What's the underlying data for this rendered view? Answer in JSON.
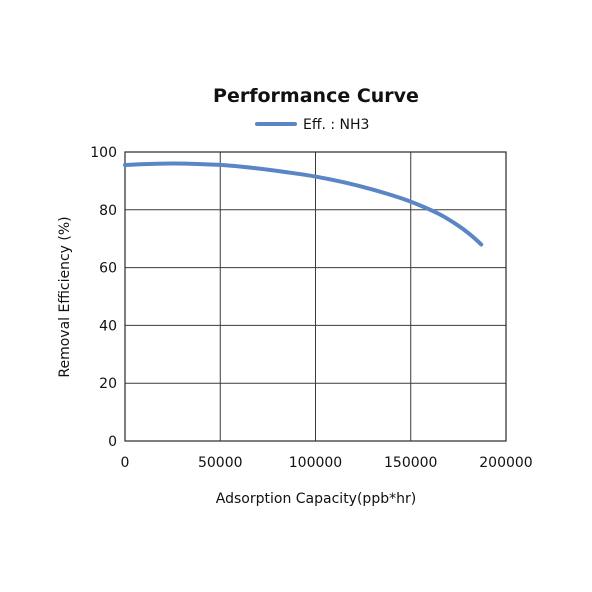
{
  "chart_data": {
    "type": "line",
    "title": "Performance Curve",
    "xlabel": "Adsorption Capacity(ppb*hr)",
    "ylabel": "Removal Efficiency (%)",
    "xlim": [
      0,
      200000
    ],
    "ylim": [
      0,
      100
    ],
    "x_ticks": [
      0,
      50000,
      100000,
      150000,
      200000
    ],
    "x_tick_labels": [
      "0",
      "50000",
      "100000",
      "150000",
      "200000"
    ],
    "y_ticks": [
      0,
      20,
      40,
      60,
      80,
      100
    ],
    "y_tick_labels": [
      "0",
      "20",
      "40",
      "60",
      "80",
      "100"
    ],
    "grid": true,
    "legend_position": "top-center",
    "series": [
      {
        "name": "Eff. : NH3",
        "color": "#5b86c5",
        "x": [
          0,
          10000,
          25000,
          40000,
          55000,
          70000,
          85000,
          100000,
          115000,
          130000,
          145000,
          155000,
          165000,
          175000,
          182000,
          187000
        ],
        "y": [
          95.5,
          95.8,
          96.0,
          95.8,
          95.3,
          94.3,
          93.0,
          91.5,
          89.5,
          87.0,
          84.0,
          81.5,
          78.5,
          74.5,
          71.0,
          68.0
        ]
      }
    ]
  }
}
